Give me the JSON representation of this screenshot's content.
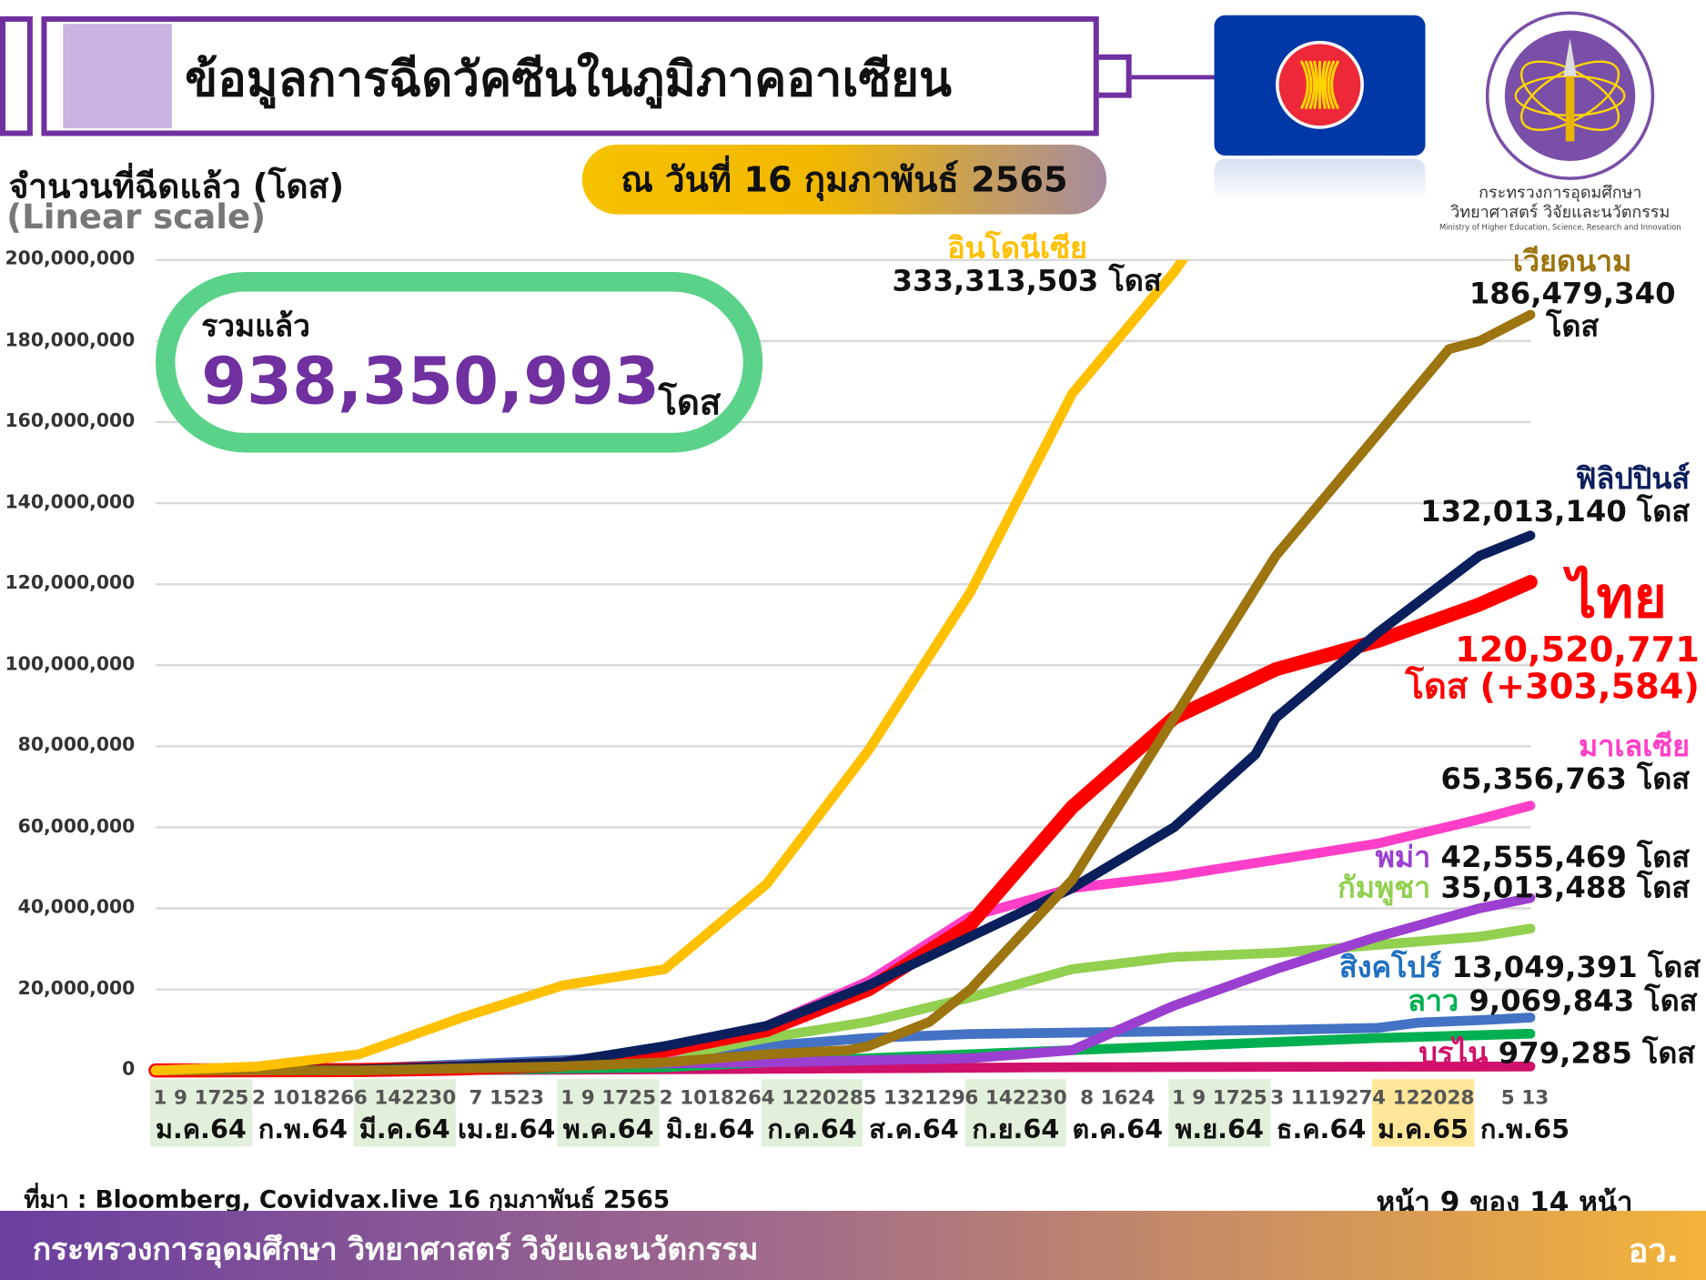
{
  "header": {
    "title": "ข้อมูลการฉีดวัคซีนในภูมิภาคอาเซียน",
    "date": "ณ วันที่ 16 กุมภาพันธ์ 2565"
  },
  "ministry": {
    "name_th_1": "กระทรวงการอุดมศึกษา",
    "name_th_2": "วิทยาศาสตร์ วิจัยและนวัตกรรม",
    "name_en": "Ministry of Higher Education, Science, Research and Innovation"
  },
  "total": {
    "label": "รวมแล้ว",
    "value": "938,350,993",
    "unit": "โดส"
  },
  "colors": {
    "brand": "#7030a0",
    "total_border": "#5bd28a"
  },
  "chart_data": {
    "type": "line",
    "title": "จำนวนที่ฉีดแล้ว (โดส)",
    "subtitle": "(Linear scale)",
    "ylabel": "จำนวนที่ฉีดแล้ว (โดส)",
    "ylim": [
      0,
      200000000
    ],
    "yticks": [
      "200,000,000",
      "180,000,000",
      "160,000,000",
      "140,000,000",
      "120,000,000",
      "100,000,000",
      "80,000,000",
      "60,000,000",
      "40,000,000",
      "20,000,000",
      "0"
    ],
    "ytick_values": [
      200,
      180,
      160,
      140,
      120,
      100,
      80,
      60,
      40,
      20,
      0
    ],
    "value_unit": "millions of doses",
    "x_unit": "months since 1 Jan 2021 (ม.ค.64)",
    "grid": true,
    "months": [
      {
        "days": "1  9 1725",
        "name": "ม.ค.64",
        "hl": "green"
      },
      {
        "days": "2 101826",
        "name": "ก.พ.64",
        "hl": ""
      },
      {
        "days": "6 142230",
        "name": "มี.ค.64",
        "hl": "green"
      },
      {
        "days": "7 1523",
        "name": "เม.ย.64",
        "hl": ""
      },
      {
        "days": "1  9 1725",
        "name": "พ.ค.64",
        "hl": "green"
      },
      {
        "days": "2 101826",
        "name": "มิ.ย.64",
        "hl": ""
      },
      {
        "days": "4 122028",
        "name": "ก.ค.64",
        "hl": "green"
      },
      {
        "days": "5 132129",
        "name": "ส.ค.64",
        "hl": ""
      },
      {
        "days": "6 142230",
        "name": "ก.ย.64",
        "hl": "green"
      },
      {
        "days": "8 1624",
        "name": "ต.ค.64",
        "hl": ""
      },
      {
        "days": "1  9 1725",
        "name": "พ.ย.64",
        "hl": "green"
      },
      {
        "days": "3 111927",
        "name": "ธ.ค.64",
        "hl": ""
      },
      {
        "days": "4 122028",
        "name": "ม.ค.65",
        "hl": "yellow"
      },
      {
        "days": "5 13",
        "name": "ก.พ.65",
        "hl": ""
      }
    ],
    "series": [
      {
        "name": "บรูไน",
        "total": "979,285 โดส",
        "color": "#d0106a",
        "x": [
          0,
          3,
          6,
          9,
          13.5
        ],
        "values": [
          0,
          0.1,
          0.4,
          0.8,
          0.98
        ]
      },
      {
        "name": "ลาว",
        "total": "9,069,843 โดส",
        "color": "#00b050",
        "x": [
          0,
          3,
          5,
          6,
          8,
          10,
          12,
          13.5
        ],
        "values": [
          0,
          0.1,
          0.8,
          2,
          4,
          6,
          8,
          9.07
        ]
      },
      {
        "name": "สิงคโปร์",
        "total": "13,049,391 โดส",
        "color": "#4472c4",
        "x": [
          0,
          2,
          4,
          5,
          6,
          7,
          8,
          11,
          12,
          12.4,
          13,
          13.5
        ],
        "values": [
          0,
          0.5,
          2.5,
          4,
          6,
          8,
          9,
          10,
          10.5,
          11.8,
          12.4,
          13.05
        ]
      },
      {
        "name": "กัมพูชา",
        "total": "35,013,488 โดส",
        "color": "#92d050",
        "x": [
          0,
          1,
          3,
          5,
          6,
          7,
          8,
          9,
          10,
          11,
          12,
          13,
          13.5
        ],
        "values": [
          0,
          0,
          1,
          3,
          8,
          12,
          18,
          25,
          28,
          29,
          31,
          33,
          35.01
        ]
      },
      {
        "name": "พม่า",
        "total": "42,555,469 โดส",
        "color": "#9b3fd0",
        "x": [
          0,
          1,
          2,
          4,
          6,
          8,
          8.5,
          9,
          10,
          11,
          12,
          13,
          13.5
        ],
        "values": [
          0,
          0,
          0.5,
          1.5,
          2,
          3,
          4,
          5,
          16,
          25,
          33,
          40,
          42.56
        ]
      },
      {
        "name": "มาเลเซีย",
        "total": "65,356,763 โดส",
        "color": "#ff3fc8",
        "x": [
          0,
          2,
          4,
          5,
          6,
          7,
          8,
          9,
          10,
          11,
          12,
          13,
          13.5
        ],
        "values": [
          0,
          0.2,
          1.5,
          4,
          11,
          22,
          38,
          45,
          48,
          52,
          56,
          62,
          65.36
        ]
      },
      {
        "name": "ไทย",
        "total": "120,520,771",
        "delta": "โดส (+303,584)",
        "color": "#ff0000",
        "x": [
          0,
          2,
          3,
          4,
          5,
          6,
          7,
          8,
          9,
          10,
          11,
          12,
          13,
          13.5
        ],
        "values": [
          0,
          0.1,
          0.5,
          1.5,
          5,
          10,
          20,
          36,
          65,
          87,
          99,
          106,
          115,
          120.52
        ]
      },
      {
        "name": "ฟิลิปปินส์",
        "total": "132,013,140 โดส",
        "color": "#0b1f5c",
        "x": [
          0,
          2,
          3,
          4,
          5,
          6,
          7,
          8,
          9,
          10,
          10.8,
          11,
          12,
          13,
          13.5
        ],
        "values": [
          0,
          0.2,
          1,
          2,
          6,
          11,
          21,
          33,
          45,
          60,
          78,
          87,
          108,
          127,
          132.01
        ]
      },
      {
        "name": "เวียดนาม",
        "total": "186,479,340",
        "unit": "โดส",
        "color": "#9c7410",
        "x": [
          0,
          2,
          4,
          5,
          6,
          6.8,
          7,
          7.6,
          8,
          9,
          10,
          11,
          12,
          12.7,
          13,
          13.5
        ],
        "values": [
          0,
          0,
          1,
          2,
          4,
          5,
          6,
          12,
          20,
          47,
          87,
          127,
          157,
          178,
          180,
          186.48
        ]
      },
      {
        "name": "อินโดนีเซีย",
        "total": "333,313,503 โดส",
        "color": "#ffc000",
        "x": [
          0,
          1,
          2,
          3,
          4,
          5,
          6,
          7,
          8,
          9,
          10,
          10.5
        ],
        "values": [
          0,
          1,
          4,
          13,
          21,
          25,
          46,
          79,
          118,
          167,
          197,
          215
        ]
      }
    ]
  },
  "footer": {
    "source": "ที่มา : Bloomberg, Covidvax.live 16 กุมภาพันธ์ 2565",
    "page": "หน้า 9 ของ 14 หน้า",
    "ministry": "กระทรวงการอุดมศึกษา วิทยาศาสตร์ วิจัยและนวัตกรรม",
    "abbr": "อว."
  }
}
